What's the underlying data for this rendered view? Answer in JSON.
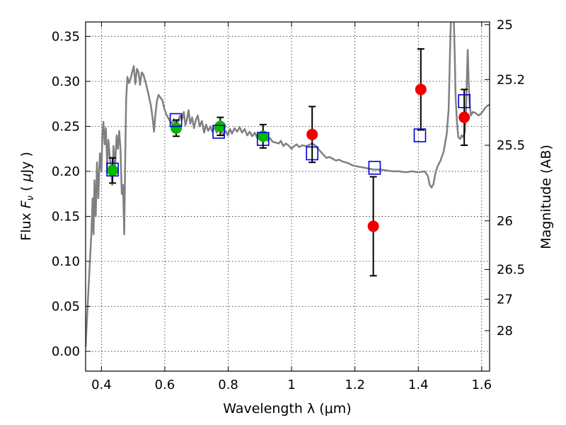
{
  "chart_data": {
    "type": "scatter",
    "xlabel": "Wavelength  λ (μm)",
    "ylabel": "Flux  F_ν  ( μJy )",
    "ylabel_parts": {
      "pre": "Flux  ",
      "F": "F",
      "sub": "ν",
      "post": "  ( ",
      "mu": "μ",
      "unit": "Jy )"
    },
    "ylabel_right": "Magnitude (AB)",
    "xlim": [
      0.35,
      1.625
    ],
    "ylim": [
      -0.022,
      0.366
    ],
    "xticks": [
      0.4,
      0.6,
      0.8,
      1.0,
      1.2,
      1.4,
      1.6
    ],
    "xtick_labels": [
      "0.4",
      "0.6",
      "0.8",
      "1",
      "1.2",
      "1.4",
      "1.6"
    ],
    "yticks": [
      0.0,
      0.05,
      0.1,
      0.15,
      0.2,
      0.25,
      0.3,
      0.35
    ],
    "ytick_labels": [
      "0.00",
      "0.05",
      "0.10",
      "0.15",
      "0.20",
      "0.25",
      "0.30",
      "0.35"
    ],
    "right_ticks": [
      {
        "label": "25",
        "flux": 0.363
      },
      {
        "label": "25.2",
        "flux": 0.302
      },
      {
        "label": "25.5",
        "flux": 0.229
      },
      {
        "label": "26",
        "flux": 0.145
      },
      {
        "label": "26.5",
        "flux": 0.091
      },
      {
        "label": "27",
        "flux": 0.058
      },
      {
        "label": "28",
        "flux": 0.023
      }
    ],
    "grid": true,
    "colors": {
      "model": "#808080",
      "green": "#00bb00",
      "red": "#ee0000",
      "box": "#0000cc",
      "error": "#000000"
    },
    "model_spectrum": [
      [
        0.35,
        0.005
      ],
      [
        0.355,
        0.04
      ],
      [
        0.362,
        0.09
      ],
      [
        0.368,
        0.13
      ],
      [
        0.372,
        0.17
      ],
      [
        0.375,
        0.13
      ],
      [
        0.378,
        0.19
      ],
      [
        0.382,
        0.15
      ],
      [
        0.386,
        0.21
      ],
      [
        0.39,
        0.17
      ],
      [
        0.395,
        0.22
      ],
      [
        0.4,
        0.2
      ],
      [
        0.403,
        0.24
      ],
      [
        0.406,
        0.255
      ],
      [
        0.41,
        0.23
      ],
      [
        0.414,
        0.248
      ],
      [
        0.418,
        0.205
      ],
      [
        0.422,
        0.235
      ],
      [
        0.426,
        0.218
      ],
      [
        0.43,
        0.205
      ],
      [
        0.434,
        0.185
      ],
      [
        0.438,
        0.228
      ],
      [
        0.443,
        0.205
      ],
      [
        0.448,
        0.24
      ],
      [
        0.452,
        0.225
      ],
      [
        0.456,
        0.245
      ],
      [
        0.46,
        0.225
      ],
      [
        0.464,
        0.175
      ],
      [
        0.468,
        0.185
      ],
      [
        0.472,
        0.13
      ],
      [
        0.475,
        0.215
      ],
      [
        0.478,
        0.28
      ],
      [
        0.482,
        0.305
      ],
      [
        0.487,
        0.298
      ],
      [
        0.493,
        0.304
      ],
      [
        0.498,
        0.312
      ],
      [
        0.502,
        0.317
      ],
      [
        0.507,
        0.297
      ],
      [
        0.512,
        0.314
      ],
      [
        0.517,
        0.31
      ],
      [
        0.522,
        0.296
      ],
      [
        0.527,
        0.31
      ],
      [
        0.532,
        0.308
      ],
      [
        0.54,
        0.298
      ],
      [
        0.548,
        0.286
      ],
      [
        0.556,
        0.273
      ],
      [
        0.562,
        0.258
      ],
      [
        0.566,
        0.244
      ],
      [
        0.57,
        0.262
      ],
      [
        0.575,
        0.278
      ],
      [
        0.58,
        0.285
      ],
      [
        0.586,
        0.282
      ],
      [
        0.592,
        0.279
      ],
      [
        0.598,
        0.27
      ],
      [
        0.604,
        0.264
      ],
      [
        0.61,
        0.26
      ],
      [
        0.616,
        0.256
      ],
      [
        0.622,
        0.253
      ],
      [
        0.628,
        0.258
      ],
      [
        0.634,
        0.248
      ],
      [
        0.64,
        0.254
      ],
      [
        0.648,
        0.262
      ],
      [
        0.654,
        0.257
      ],
      [
        0.66,
        0.266
      ],
      [
        0.665,
        0.251
      ],
      [
        0.67,
        0.258
      ],
      [
        0.675,
        0.268
      ],
      [
        0.68,
        0.253
      ],
      [
        0.686,
        0.26
      ],
      [
        0.692,
        0.248
      ],
      [
        0.698,
        0.257
      ],
      [
        0.704,
        0.262
      ],
      [
        0.71,
        0.25
      ],
      [
        0.717,
        0.256
      ],
      [
        0.724,
        0.243
      ],
      [
        0.73,
        0.252
      ],
      [
        0.737,
        0.245
      ],
      [
        0.744,
        0.25
      ],
      [
        0.75,
        0.244
      ],
      [
        0.757,
        0.249
      ],
      [
        0.764,
        0.243
      ],
      [
        0.771,
        0.248
      ],
      [
        0.778,
        0.245
      ],
      [
        0.785,
        0.241
      ],
      [
        0.792,
        0.245
      ],
      [
        0.799,
        0.24
      ],
      [
        0.806,
        0.247
      ],
      [
        0.812,
        0.242
      ],
      [
        0.82,
        0.248
      ],
      [
        0.828,
        0.244
      ],
      [
        0.836,
        0.249
      ],
      [
        0.844,
        0.243
      ],
      [
        0.852,
        0.247
      ],
      [
        0.86,
        0.24
      ],
      [
        0.868,
        0.244
      ],
      [
        0.876,
        0.239
      ],
      [
        0.884,
        0.243
      ],
      [
        0.892,
        0.237
      ],
      [
        0.9,
        0.242
      ],
      [
        0.908,
        0.235
      ],
      [
        0.916,
        0.241
      ],
      [
        0.924,
        0.234
      ],
      [
        0.932,
        0.237
      ],
      [
        0.94,
        0.233
      ],
      [
        0.95,
        0.232
      ],
      [
        0.96,
        0.231
      ],
      [
        0.966,
        0.234
      ],
      [
        0.974,
        0.228
      ],
      [
        0.982,
        0.231
      ],
      [
        0.99,
        0.229
      ],
      [
        1.0,
        0.225
      ],
      [
        1.008,
        0.228
      ],
      [
        1.016,
        0.23
      ],
      [
        1.024,
        0.227
      ],
      [
        1.034,
        0.229
      ],
      [
        1.044,
        0.228
      ],
      [
        1.054,
        0.229
      ],
      [
        1.064,
        0.231
      ],
      [
        1.074,
        0.229
      ],
      [
        1.084,
        0.225
      ],
      [
        1.094,
        0.221
      ],
      [
        1.102,
        0.218
      ],
      [
        1.11,
        0.215
      ],
      [
        1.12,
        0.216
      ],
      [
        1.13,
        0.214
      ],
      [
        1.14,
        0.212
      ],
      [
        1.15,
        0.213
      ],
      [
        1.16,
        0.211
      ],
      [
        1.17,
        0.21
      ],
      [
        1.18,
        0.209
      ],
      [
        1.19,
        0.207
      ],
      [
        1.2,
        0.206
      ],
      [
        1.215,
        0.205
      ],
      [
        1.23,
        0.204
      ],
      [
        1.245,
        0.203
      ],
      [
        1.26,
        0.202
      ],
      [
        1.28,
        0.202
      ],
      [
        1.3,
        0.201
      ],
      [
        1.32,
        0.2
      ],
      [
        1.34,
        0.2
      ],
      [
        1.36,
        0.199
      ],
      [
        1.38,
        0.2
      ],
      [
        1.4,
        0.199
      ],
      [
        1.42,
        0.2
      ],
      [
        1.43,
        0.195
      ],
      [
        1.436,
        0.185
      ],
      [
        1.442,
        0.182
      ],
      [
        1.448,
        0.186
      ],
      [
        1.454,
        0.198
      ],
      [
        1.46,
        0.205
      ],
      [
        1.47,
        0.212
      ],
      [
        1.48,
        0.222
      ],
      [
        1.49,
        0.242
      ],
      [
        1.496,
        0.27
      ],
      [
        1.5,
        0.33
      ],
      [
        1.503,
        0.37
      ],
      [
        1.512,
        0.37
      ],
      [
        1.515,
        0.33
      ],
      [
        1.518,
        0.28
      ],
      [
        1.522,
        0.255
      ],
      [
        1.526,
        0.238
      ],
      [
        1.532,
        0.236
      ],
      [
        1.537,
        0.24
      ],
      [
        1.542,
        0.238
      ],
      [
        1.547,
        0.244
      ],
      [
        1.55,
        0.262
      ],
      [
        1.553,
        0.3
      ],
      [
        1.556,
        0.335
      ],
      [
        1.559,
        0.3
      ],
      [
        1.562,
        0.275
      ],
      [
        1.566,
        0.262
      ],
      [
        1.572,
        0.266
      ],
      [
        1.58,
        0.265
      ],
      [
        1.59,
        0.262
      ],
      [
        1.6,
        0.265
      ],
      [
        1.61,
        0.27
      ],
      [
        1.618,
        0.273
      ],
      [
        1.625,
        0.274
      ]
    ],
    "series": [
      {
        "marker": "circle",
        "color": "green",
        "points": [
          {
            "x": 0.435,
            "y": 0.201,
            "yerr": 0.014
          },
          {
            "x": 0.636,
            "y": 0.248,
            "yerr": 0.009
          },
          {
            "x": 0.775,
            "y": 0.25,
            "yerr": 0.01
          },
          {
            "x": 0.91,
            "y": 0.239,
            "yerr": 0.013
          }
        ]
      },
      {
        "marker": "circle",
        "color": "red",
        "points": [
          {
            "x": 1.065,
            "y": 0.241,
            "yerr": 0.031
          },
          {
            "x": 1.258,
            "y": 0.139,
            "yerr": 0.055
          },
          {
            "x": 1.408,
            "y": 0.291,
            "yerr": 0.045
          },
          {
            "x": 1.545,
            "y": 0.26,
            "yerr": 0.031
          }
        ]
      },
      {
        "marker": "square",
        "color": "box",
        "points": [
          {
            "x": 0.435,
            "y": 0.202
          },
          {
            "x": 0.635,
            "y": 0.257
          },
          {
            "x": 0.77,
            "y": 0.244
          },
          {
            "x": 0.91,
            "y": 0.236
          },
          {
            "x": 1.065,
            "y": 0.22
          },
          {
            "x": 1.262,
            "y": 0.204
          },
          {
            "x": 1.405,
            "y": 0.24
          },
          {
            "x": 1.545,
            "y": 0.278
          }
        ]
      }
    ]
  }
}
